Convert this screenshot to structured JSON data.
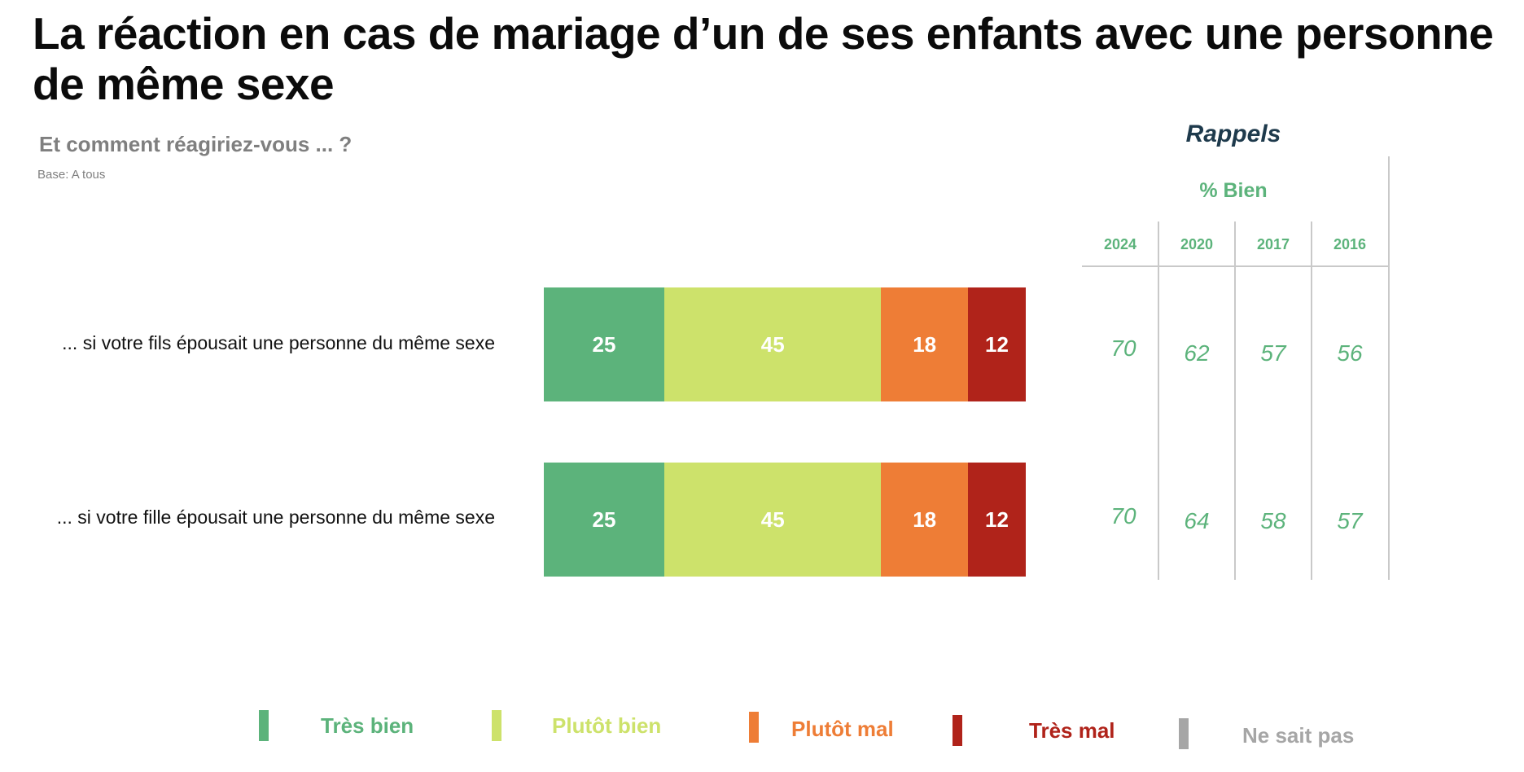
{
  "title": "La réaction en cas de mariage d’un de ses enfants avec une personne de même sexe",
  "subtitle": "Et comment réagiriez-vous ... ?",
  "base": "Base: A tous",
  "colors": {
    "tres_bien": "#5cb37b",
    "plutot_bien": "#cde26b",
    "plutot_mal": "#ee7d36",
    "tres_mal": "#b0231a",
    "ne_sait_pas": "#a6a6a6"
  },
  "chart_data": {
    "type": "bar",
    "orientation": "horizontal",
    "stacked": true,
    "categories": [
      "... si votre fils épousait une personne du même sexe",
      "... si votre fille épousait une personne du même sexe"
    ],
    "series": [
      {
        "name": "Très bien",
        "values": [
          25,
          25
        ]
      },
      {
        "name": "Plutôt bien",
        "values": [
          45,
          45
        ]
      },
      {
        "name": "Plutôt mal",
        "values": [
          18,
          18
        ]
      },
      {
        "name": "Très mal",
        "values": [
          12,
          12
        ]
      },
      {
        "name": "Ne sait pas",
        "values": [
          0,
          0
        ]
      }
    ],
    "xlim": [
      0,
      100
    ],
    "legend_position": "bottom",
    "grid": false
  },
  "rappels": {
    "title": "Rappels",
    "subtitle": "% Bien",
    "years": [
      "2024",
      "2020",
      "2017",
      "2016"
    ],
    "rows": [
      [
        "70",
        "62",
        "57",
        "56"
      ],
      [
        "70",
        "64",
        "58",
        "57"
      ]
    ]
  }
}
